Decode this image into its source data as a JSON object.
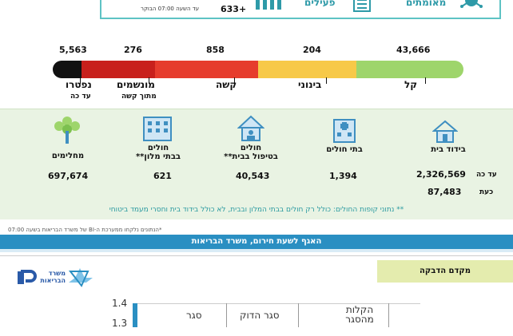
{
  "top": {
    "label_right": "מאומתים",
    "label_mid": "פעילים",
    "delta": "633+",
    "time_note": "עד השעה 07:00 הבוקר"
  },
  "severity": {
    "segments": [
      {
        "color": "#111111",
        "fraction": 0.07
      },
      {
        "color": "#c8201c",
        "fraction": 0.18
      },
      {
        "color": "#e63c2d",
        "fraction": 0.25
      },
      {
        "color": "#f7c948",
        "fraction": 0.24
      },
      {
        "color": "#9ed56b",
        "fraction": 0.26
      }
    ],
    "items": [
      {
        "value": "5,563",
        "label": "נפטרו",
        "sub": "עד כה"
      },
      {
        "value": "276",
        "label": "מונשמים",
        "sub": "מתוך קשה"
      },
      {
        "value": "858",
        "label": "קשה",
        "sub": ""
      },
      {
        "value": "204",
        "label": "בינוני",
        "sub": ""
      },
      {
        "value": "43,666",
        "label": "קל",
        "sub": ""
      }
    ]
  },
  "locations": {
    "items": [
      {
        "label": "בידוד בית",
        "value": "2,326,569",
        "value2": "87,483",
        "icon": "house-icon"
      },
      {
        "label": "בתי חולים",
        "value": "1,394",
        "icon": "hospital-icon"
      },
      {
        "label": "חולים\nבטיפול בבית**",
        "value": "40,543",
        "icon": "home-care-icon"
      },
      {
        "label": "חולים\nבבתי מלון**",
        "value": "621",
        "icon": "hotel-icon"
      },
      {
        "label": "מחלימים",
        "value": "697,674",
        "icon": "recovered-tree-icon"
      }
    ],
    "row_label_1": "עד כה",
    "row_label_2": "כעת",
    "footnote": "** נתוני קופות החולים: כולל רק חולים בבתי המלון ובבית, לא כולל בידוד בית וחסרי מעמד ביטוחי"
  },
  "credit": "*הנתונים נלקחו ממערכת ה-BI של משרד הבריאות בשעה 07:00",
  "banner": "האגף לשעת חירום, משרד הבריאות",
  "lower": {
    "tag": "מקדם הדבקה",
    "logo_text": "משרד הבריאות",
    "y_ticks": [
      "1.4",
      "1.3"
    ],
    "columns": [
      "הקלות מהסגר",
      "סגר הדוק",
      "סגר"
    ]
  },
  "colors": {
    "teal": "#2e9aa8",
    "banner": "#2a8fc2",
    "panel": "#e9f3e3"
  }
}
